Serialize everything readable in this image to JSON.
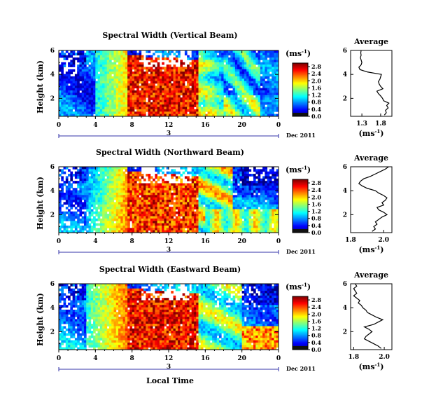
{
  "chart_data": [
    {
      "type": "heatmap",
      "title": "Spectral Width (Vertical Beam)",
      "ylabel": "Height (km)",
      "x_ticks": [
        "0",
        "4",
        "8",
        "12",
        "16",
        "20",
        "0"
      ],
      "y_ticks": [
        "6",
        "4",
        "2"
      ],
      "xlim": [
        0,
        24
      ],
      "ylim": [
        0.5,
        6
      ],
      "day_label": "3",
      "date_label": "Dec 2011",
      "colorbar": {
        "unit_main": "(ms",
        "unit_sup": "-1",
        "unit_close": ")",
        "ticks": [
          "0.0",
          "0.4",
          "0.8",
          "1.2",
          "1.6",
          "2.0",
          "2.4",
          "2.8"
        ],
        "range": [
          0,
          3.0
        ]
      },
      "pattern": "vertical",
      "average_profile": {
        "title": "Average",
        "x_ticks": [
          "1.3",
          "1.8"
        ],
        "xlim": [
          1.0,
          2.1
        ],
        "xlabel_main": "(ms",
        "xlabel_sup": "-1",
        "xlabel_close": ")",
        "y_ticks": [
          "6",
          "4",
          "2"
        ],
        "ylim": [
          0.5,
          6
        ],
        "heights": [
          0.6,
          0.8,
          1.0,
          1.2,
          1.4,
          1.6,
          1.8,
          2.0,
          2.2,
          2.4,
          2.6,
          2.8,
          3.0,
          3.2,
          3.4,
          3.6,
          3.8,
          4.0,
          4.2,
          4.4,
          4.6,
          4.8,
          5.0,
          5.2,
          5.4,
          5.6,
          5.8,
          6.0
        ],
        "values": [
          1.9,
          1.95,
          1.93,
          2.0,
          1.96,
          2.02,
          1.88,
          1.85,
          1.8,
          1.74,
          1.7,
          1.86,
          1.8,
          1.76,
          1.74,
          1.78,
          1.8,
          1.82,
          1.45,
          1.25,
          1.22,
          1.28,
          1.3,
          1.28,
          1.26,
          1.28,
          1.27,
          1.28
        ]
      }
    },
    {
      "type": "heatmap",
      "title": "Spectral Width (Northward Beam)",
      "ylabel": "Height (km)",
      "x_ticks": [
        "0",
        "4",
        "8",
        "12",
        "16",
        "20",
        "0"
      ],
      "y_ticks": [
        "6",
        "4",
        "2"
      ],
      "xlim": [
        0,
        24
      ],
      "ylim": [
        0.5,
        6
      ],
      "day_label": "3",
      "date_label": "Dec 2011",
      "colorbar": {
        "unit_main": "(ms",
        "unit_sup": "-1",
        "unit_close": ")",
        "ticks": [
          "0.0",
          "0.4",
          "0.8",
          "1.2",
          "1.6",
          "2.0",
          "2.4",
          "2.8"
        ],
        "range": [
          0,
          3.0
        ]
      },
      "pattern": "northward",
      "average_profile": {
        "title": "Average",
        "x_ticks": [
          "1.8",
          "2.0"
        ],
        "xlim": [
          1.8,
          2.05
        ],
        "xlabel_main": "(ms",
        "xlabel_sup": "-1",
        "xlabel_close": ")",
        "y_ticks": [
          "6",
          "4",
          "2"
        ],
        "ylim": [
          0.5,
          6
        ],
        "heights": [
          0.6,
          0.8,
          1.0,
          1.2,
          1.4,
          1.6,
          1.8,
          2.0,
          2.2,
          2.4,
          2.6,
          2.8,
          3.0,
          3.2,
          3.4,
          3.6,
          3.8,
          4.0,
          4.2,
          4.4,
          4.6,
          4.8,
          5.0,
          5.2,
          5.4,
          5.6,
          5.8,
          6.0
        ],
        "values": [
          1.93,
          1.95,
          1.94,
          1.96,
          1.95,
          1.97,
          1.99,
          2.02,
          2.0,
          1.97,
          1.96,
          2.0,
          1.99,
          2.01,
          2.02,
          2.0,
          1.97,
          1.95,
          1.9,
          1.87,
          1.85,
          1.86,
          1.88,
          1.92,
          1.95,
          1.98,
          2.01,
          2.03
        ]
      }
    },
    {
      "type": "heatmap",
      "title": "Spectral Width (Eastward Beam)",
      "ylabel": "Height (km)",
      "xlabel": "Local Time",
      "x_ticks": [
        "0",
        "4",
        "8",
        "12",
        "16",
        "20",
        "0"
      ],
      "y_ticks": [
        "6",
        "4",
        "2"
      ],
      "xlim": [
        0,
        24
      ],
      "ylim": [
        0.5,
        6
      ],
      "day_label": "3",
      "date_label": "Dec 2011",
      "colorbar": {
        "unit_main": "(ms",
        "unit_sup": "-1",
        "unit_close": ")",
        "ticks": [
          "0.0",
          "0.4",
          "0.8",
          "1.2",
          "1.6",
          "2.0",
          "2.4",
          "2.8"
        ],
        "range": [
          0,
          3.0
        ]
      },
      "pattern": "eastward",
      "average_profile": {
        "title": "Average",
        "x_ticks": [
          "1.8",
          "2.0"
        ],
        "xlim": [
          1.78,
          2.05
        ],
        "xlabel_main": "(ms",
        "xlabel_sup": "-1",
        "xlabel_close": ")",
        "y_ticks": [
          "6",
          "4",
          "2"
        ],
        "ylim": [
          0.5,
          6
        ],
        "heights": [
          0.6,
          0.8,
          1.0,
          1.2,
          1.4,
          1.6,
          1.8,
          2.0,
          2.2,
          2.4,
          2.6,
          2.8,
          3.0,
          3.2,
          3.4,
          3.6,
          3.8,
          4.0,
          4.2,
          4.4,
          4.6,
          4.8,
          5.0,
          5.2,
          5.4,
          5.6,
          5.8,
          6.0
        ],
        "values": [
          1.98,
          1.96,
          1.93,
          1.9,
          1.87,
          1.88,
          1.9,
          1.92,
          1.9,
          1.87,
          1.93,
          1.96,
          1.99,
          1.95,
          1.92,
          1.89,
          1.88,
          1.86,
          1.85,
          1.83,
          1.84,
          1.82,
          1.8,
          1.82,
          1.81,
          1.8,
          1.82,
          1.81
        ]
      }
    }
  ]
}
